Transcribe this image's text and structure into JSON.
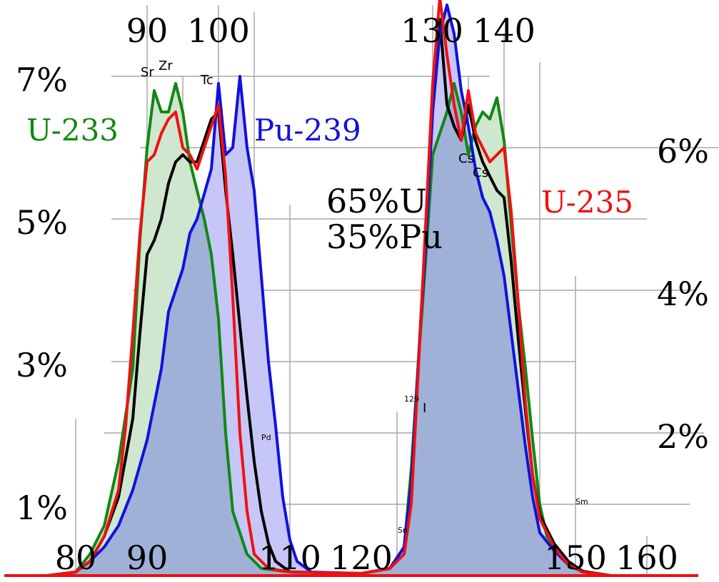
{
  "chart_data": {
    "type": "area",
    "x_ticks_bottom": [
      "80",
      "90",
      "110",
      "120",
      "150",
      "160"
    ],
    "x_ticks_top": [
      "90",
      "100",
      "130",
      "140"
    ],
    "y_ticks_left": [
      "7%",
      "5%",
      "3%",
      "1%"
    ],
    "y_ticks_right": [
      "6%",
      "4%",
      "2%"
    ],
    "annotations": {
      "mix_line1": "65%U",
      "mix_line2": "35%Pu",
      "sr": "Sr",
      "zr": "Zr",
      "tc": "Tc",
      "pd": "Pd",
      "i_mass": "129",
      "i_sym": "I",
      "cs1": "Cs",
      "cs2": "Cs",
      "sn": "Sn",
      "sm": "Sm"
    },
    "series": [
      {
        "name": "U-233",
        "color": "#118811",
        "fill": "#cfe6cf",
        "points": [
          [
            76,
            0
          ],
          [
            80,
            0.05
          ],
          [
            82,
            0.3
          ],
          [
            84,
            0.7
          ],
          [
            86,
            1.6
          ],
          [
            88,
            2.9
          ],
          [
            89,
            4.7
          ],
          [
            90,
            6.0
          ],
          [
            91,
            6.8
          ],
          [
            92,
            6.5
          ],
          [
            93,
            6.5
          ],
          [
            94,
            6.9
          ],
          [
            95,
            6.5
          ],
          [
            96,
            5.8
          ],
          [
            97,
            5.4
          ],
          [
            98,
            5.0
          ],
          [
            99,
            4.5
          ],
          [
            100,
            3.6
          ],
          [
            101,
            2.0
          ],
          [
            102,
            0.9
          ],
          [
            104,
            0.3
          ],
          [
            106,
            0.1
          ],
          [
            110,
            0.05
          ],
          [
            120,
            0.03
          ],
          [
            124,
            0.1
          ],
          [
            126,
            0.4
          ],
          [
            127,
            1.5
          ],
          [
            128,
            3.0
          ],
          [
            129,
            4.4
          ],
          [
            130,
            5.9
          ],
          [
            131,
            6.2
          ],
          [
            132,
            6.5
          ],
          [
            133,
            6.9
          ],
          [
            134,
            6.5
          ],
          [
            135,
            5.9
          ],
          [
            136,
            6.3
          ],
          [
            137,
            6.5
          ],
          [
            138,
            6.4
          ],
          [
            139,
            6.7
          ],
          [
            140,
            6.1
          ],
          [
            141,
            4.9
          ],
          [
            142,
            3.8
          ],
          [
            143,
            2.9
          ],
          [
            144,
            1.9
          ],
          [
            145,
            1.0
          ],
          [
            146,
            0.55
          ],
          [
            148,
            0.25
          ],
          [
            150,
            0.1
          ],
          [
            152,
            0.03
          ],
          [
            155,
            0
          ]
        ]
      },
      {
        "name": "Pu-239",
        "color": "#1111dd",
        "fill": "#c6c6f7",
        "points": [
          [
            76,
            0
          ],
          [
            80,
            0.05
          ],
          [
            82,
            0.2
          ],
          [
            84,
            0.4
          ],
          [
            86,
            0.7
          ],
          [
            88,
            1.2
          ],
          [
            90,
            1.9
          ],
          [
            92,
            2.9
          ],
          [
            93,
            3.7
          ],
          [
            95,
            4.3
          ],
          [
            96,
            4.8
          ],
          [
            97,
            5.0
          ],
          [
            99,
            5.7
          ],
          [
            100,
            6.9
          ],
          [
            101,
            5.9
          ],
          [
            102,
            6.0
          ],
          [
            103,
            7.0
          ],
          [
            104,
            6.0
          ],
          [
            105,
            5.4
          ],
          [
            106,
            4.2
          ],
          [
            107,
            3.0
          ],
          [
            108,
            2.1
          ],
          [
            109,
            1.1
          ],
          [
            110,
            0.5
          ],
          [
            111,
            0.2
          ],
          [
            113,
            0.05
          ],
          [
            120,
            0.03
          ],
          [
            124,
            0.1
          ],
          [
            126,
            0.4
          ],
          [
            127,
            1.3
          ],
          [
            128,
            3.0
          ],
          [
            129,
            4.6
          ],
          [
            130,
            6.5
          ],
          [
            131,
            7.6
          ],
          [
            132,
            8.0
          ],
          [
            133,
            7.6
          ],
          [
            134,
            6.8
          ],
          [
            135,
            6.3
          ],
          [
            136,
            5.7
          ],
          [
            137,
            5.3
          ],
          [
            138,
            5.1
          ],
          [
            139,
            4.7
          ],
          [
            140,
            4.2
          ],
          [
            141,
            3.4
          ],
          [
            142,
            2.6
          ],
          [
            143,
            1.8
          ],
          [
            144,
            1.1
          ],
          [
            145,
            0.6
          ],
          [
            147,
            0.35
          ],
          [
            149,
            0.15
          ],
          [
            151,
            0.05
          ],
          [
            155,
            0
          ]
        ]
      },
      {
        "name": "U-235",
        "color": "#ee1111",
        "fill": "none",
        "points": [
          [
            76,
            0
          ],
          [
            80,
            0.05
          ],
          [
            82,
            0.2
          ],
          [
            84,
            0.55
          ],
          [
            86,
            1.2
          ],
          [
            87,
            2.1
          ],
          [
            88,
            3.4
          ],
          [
            89,
            4.8
          ],
          [
            90,
            5.8
          ],
          [
            91,
            5.9
          ],
          [
            92,
            6.2
          ],
          [
            93,
            6.4
          ],
          [
            94,
            6.5
          ],
          [
            95,
            6.0
          ],
          [
            96,
            5.9
          ],
          [
            97,
            5.7
          ],
          [
            98,
            6.0
          ],
          [
            99,
            6.3
          ],
          [
            100,
            6.6
          ],
          [
            101,
            5.6
          ],
          [
            102,
            3.9
          ],
          [
            103,
            2.0
          ],
          [
            104,
            0.9
          ],
          [
            105,
            0.3
          ],
          [
            107,
            0.1
          ],
          [
            110,
            0.05
          ],
          [
            120,
            0.03
          ],
          [
            124,
            0.1
          ],
          [
            126,
            0.3
          ],
          [
            127,
            1.0
          ],
          [
            128,
            2.9
          ],
          [
            129,
            4.9
          ],
          [
            130,
            6.9
          ],
          [
            131,
            8.1
          ],
          [
            132,
            7.3
          ],
          [
            133,
            6.6
          ],
          [
            134,
            6.1
          ],
          [
            135,
            6.8
          ],
          [
            136,
            6.2
          ],
          [
            137,
            6.0
          ],
          [
            138,
            5.8
          ],
          [
            139,
            5.9
          ],
          [
            140,
            6.0
          ],
          [
            141,
            5.1
          ],
          [
            142,
            3.8
          ],
          [
            143,
            2.4
          ],
          [
            144,
            1.4
          ],
          [
            145,
            0.8
          ],
          [
            147,
            0.4
          ],
          [
            149,
            0.15
          ],
          [
            151,
            0.05
          ],
          [
            155,
            0
          ]
        ]
      },
      {
        "name": "",
        "color": "#000000",
        "fill": "none",
        "points": [
          [
            76,
            0
          ],
          [
            80,
            0.05
          ],
          [
            82,
            0.2
          ],
          [
            84,
            0.55
          ],
          [
            86,
            1.1
          ],
          [
            88,
            2.2
          ],
          [
            89,
            3.4
          ],
          [
            90,
            4.5
          ],
          [
            91,
            4.7
          ],
          [
            92,
            5.0
          ],
          [
            93,
            5.5
          ],
          [
            94,
            5.8
          ],
          [
            95,
            5.9
          ],
          [
            96,
            5.8
          ],
          [
            97,
            5.8
          ],
          [
            98,
            6.1
          ],
          [
            99,
            6.4
          ],
          [
            100,
            6.5
          ],
          [
            101,
            5.4
          ],
          [
            102,
            4.5
          ],
          [
            103,
            3.5
          ],
          [
            104,
            2.5
          ],
          [
            105,
            1.6
          ],
          [
            106,
            0.9
          ],
          [
            107,
            0.45
          ],
          [
            108,
            0.2
          ],
          [
            110,
            0.05
          ],
          [
            120,
            0.03
          ],
          [
            124,
            0.1
          ],
          [
            126,
            0.4
          ],
          [
            127,
            1.3
          ],
          [
            128,
            3.0
          ],
          [
            129,
            4.8
          ],
          [
            130,
            6.7
          ],
          [
            131,
            7.8
          ],
          [
            132,
            6.6
          ],
          [
            133,
            6.3
          ],
          [
            134,
            6.1
          ],
          [
            135,
            6.6
          ],
          [
            136,
            6.1
          ],
          [
            137,
            5.8
          ],
          [
            138,
            5.6
          ],
          [
            139,
            5.4
          ],
          [
            140,
            5.3
          ],
          [
            141,
            4.4
          ],
          [
            142,
            3.3
          ],
          [
            143,
            2.3
          ],
          [
            144,
            1.4
          ],
          [
            145,
            0.85
          ],
          [
            147,
            0.45
          ],
          [
            149,
            0.2
          ],
          [
            151,
            0.06
          ],
          [
            155,
            0
          ]
        ]
      }
    ],
    "xlim": [
      75,
      172
    ],
    "ylim": [
      0,
      8.1
    ]
  }
}
